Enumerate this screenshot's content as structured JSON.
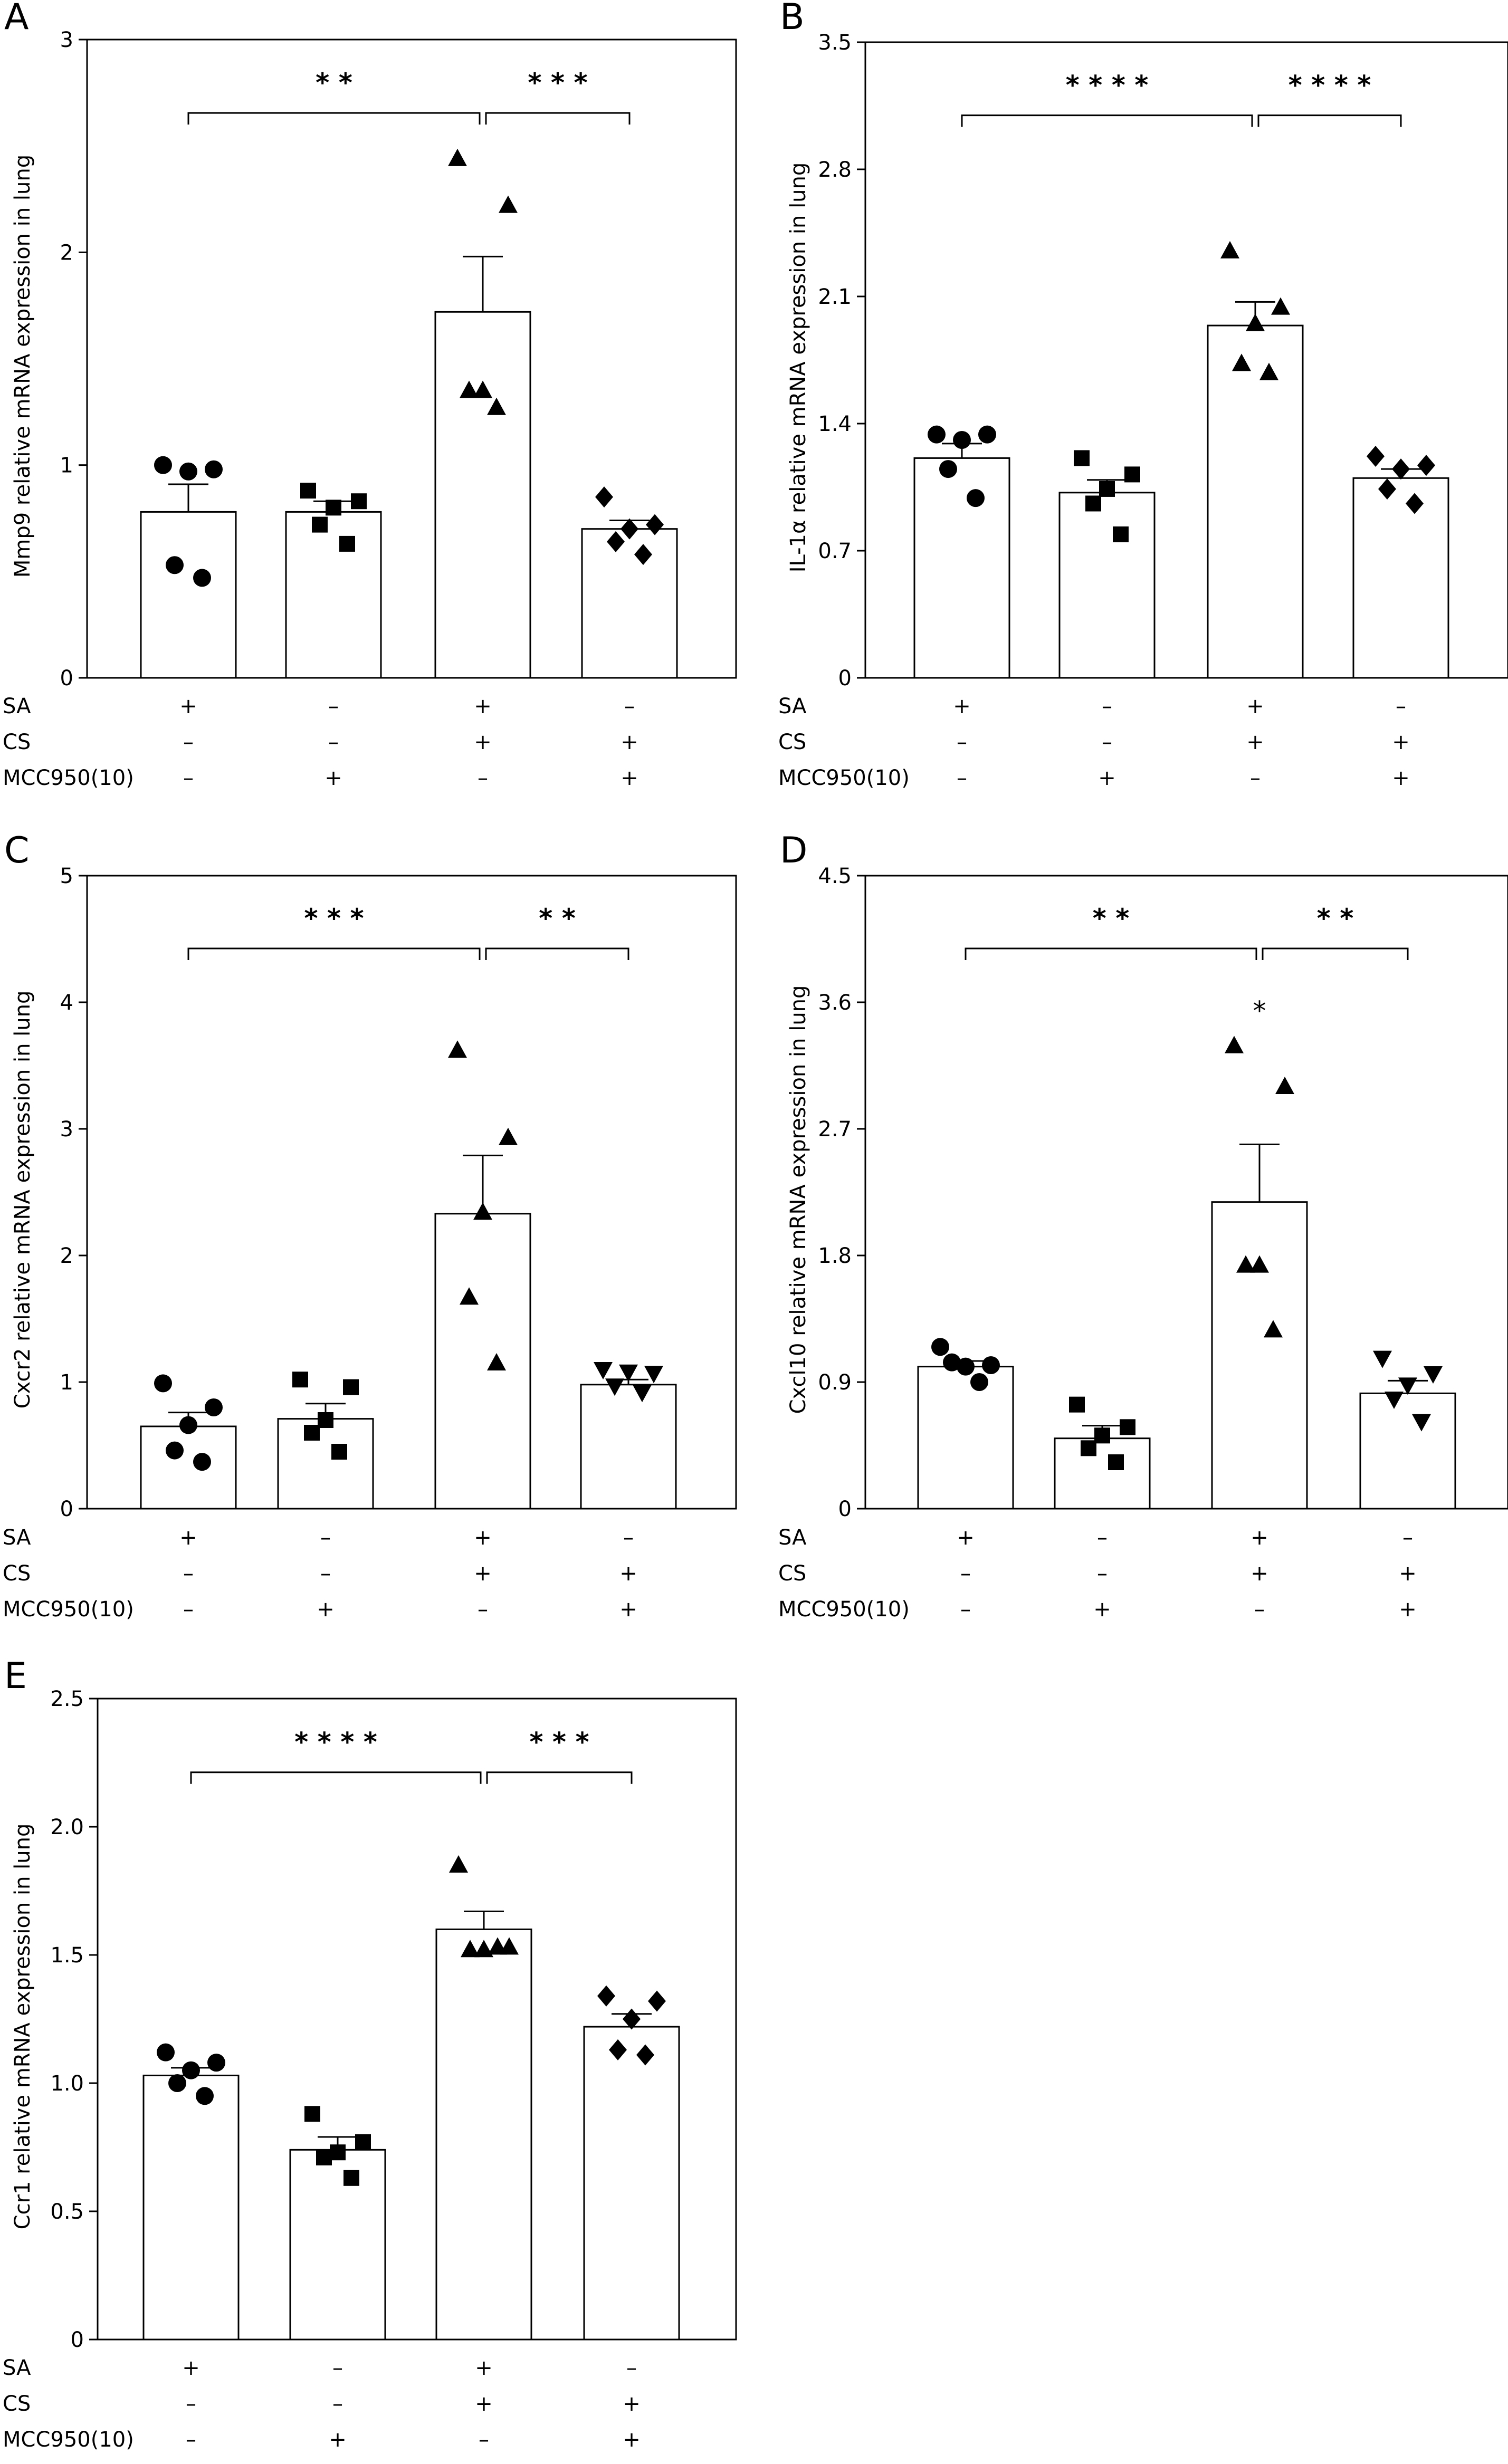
{
  "chart_data": [
    {
      "panel": "A",
      "type": "bar",
      "ylabel": "Mmp9 relative mRNA expression in lung",
      "ylim": [
        0,
        3
      ],
      "yticks": [
        0,
        1,
        2,
        3
      ],
      "tick_labels": [
        "0",
        "1",
        "2",
        "3"
      ],
      "categories": [
        "1",
        "2",
        "3",
        "4"
      ],
      "values": [
        0.78,
        0.78,
        1.72,
        0.7
      ],
      "sem": [
        0.13,
        0.05,
        0.26,
        0.04
      ],
      "points": [
        [
          1.0,
          0.98,
          0.97,
          0.53,
          0.47
        ],
        [
          0.88,
          0.83,
          0.8,
          0.72,
          0.63
        ],
        [
          2.44,
          2.22,
          1.35,
          1.35,
          1.27
        ],
        [
          0.85,
          0.72,
          0.7,
          0.64,
          0.58
        ]
      ],
      "markers": [
        "circle",
        "square",
        "triangle-up",
        "diamond"
      ],
      "significance": [
        {
          "from": 1,
          "to": 3,
          "label": "**"
        },
        {
          "from": 3,
          "to": 4,
          "label": "***"
        }
      ],
      "extra_mark": null,
      "grid": false,
      "legend": "none"
    },
    {
      "panel": "B",
      "type": "bar",
      "ylabel": "IL-1α relative mRNA expression in lung",
      "ylim": [
        0,
        3.5
      ],
      "yticks": [
        0,
        0.7,
        1.4,
        2.1,
        2.8,
        3.5
      ],
      "tick_labels": [
        "0",
        "0.7",
        "1.4",
        "2.1",
        "2.8",
        "3.5"
      ],
      "categories": [
        "1",
        "2",
        "3",
        "4"
      ],
      "values": [
        1.21,
        1.02,
        1.94,
        1.1
      ],
      "sem": [
        0.08,
        0.07,
        0.13,
        0.05
      ],
      "points": [
        [
          1.34,
          1.34,
          1.31,
          1.15,
          0.99
        ],
        [
          1.21,
          1.12,
          1.04,
          0.96,
          0.79
        ],
        [
          2.35,
          2.04,
          1.95,
          1.73,
          1.68
        ],
        [
          1.22,
          1.17,
          1.15,
          1.04,
          0.96
        ]
      ],
      "markers": [
        "circle",
        "square",
        "triangle-up",
        "diamond"
      ],
      "significance": [
        {
          "from": 1,
          "to": 3,
          "label": "****"
        },
        {
          "from": 3,
          "to": 4,
          "label": "****"
        }
      ],
      "extra_mark": null,
      "grid": false,
      "legend": "none"
    },
    {
      "panel": "C",
      "type": "bar",
      "ylabel": "Cxcr2 relative mRNA expression in lung",
      "ylim": [
        0,
        5
      ],
      "yticks": [
        0,
        1,
        2,
        3,
        4,
        5
      ],
      "tick_labels": [
        "0",
        "1",
        "2",
        "3",
        "4",
        "5"
      ],
      "categories": [
        "1",
        "2",
        "3",
        "4"
      ],
      "values": [
        0.65,
        0.71,
        2.33,
        0.98
      ],
      "sem": [
        0.11,
        0.12,
        0.46,
        0.04
      ],
      "points": [
        [
          0.99,
          0.8,
          0.66,
          0.46,
          0.37
        ],
        [
          1.02,
          0.96,
          0.7,
          0.6,
          0.45
        ],
        [
          3.62,
          2.93,
          2.34,
          1.67,
          1.15
        ],
        [
          1.1,
          1.07,
          1.08,
          0.97,
          0.92
        ]
      ],
      "markers": [
        "circle",
        "square",
        "triangle-up",
        "triangle-down"
      ],
      "significance": [
        {
          "from": 1,
          "to": 3,
          "label": "***"
        },
        {
          "from": 3,
          "to": 4,
          "label": "**"
        }
      ],
      "extra_mark": null,
      "grid": false,
      "legend": "none"
    },
    {
      "panel": "D",
      "type": "bar",
      "ylabel": "Cxcl10 relative mRNA expression in lung",
      "ylim": [
        0,
        4.5
      ],
      "yticks": [
        0,
        0.9,
        1.8,
        2.7,
        3.6,
        4.5
      ],
      "tick_labels": [
        "0",
        "0.9",
        "1.8",
        "2.7",
        "3.6",
        "4.5"
      ],
      "categories": [
        "1",
        "2",
        "3",
        "4"
      ],
      "values": [
        1.01,
        0.5,
        2.18,
        0.82
      ],
      "sem": [
        0.04,
        0.09,
        0.41,
        0.09
      ],
      "points": [
        [
          1.15,
          1.02,
          1.01,
          1.04,
          0.9
        ],
        [
          0.74,
          0.58,
          0.52,
          0.43,
          0.33
        ],
        [
          3.29,
          3.0,
          1.73,
          1.73,
          1.27
        ],
        [
          1.07,
          0.96,
          0.88,
          0.78,
          0.62
        ]
      ],
      "markers": [
        "circle",
        "square",
        "triangle-up",
        "triangle-down"
      ],
      "significance": [
        {
          "from": 1,
          "to": 3,
          "label": "**"
        },
        {
          "from": 3,
          "to": 4,
          "label": "**"
        }
      ],
      "extra_mark": {
        "group": 3,
        "y": 3.55,
        "label": "*"
      },
      "grid": false,
      "legend": "none"
    },
    {
      "panel": "E",
      "type": "bar",
      "ylabel": "Ccr1 relative mRNA expression in lung",
      "ylim": [
        0,
        2.5
      ],
      "yticks": [
        0,
        0.5,
        1.0,
        1.5,
        2.0,
        2.5
      ],
      "tick_labels": [
        "0",
        "0.5",
        "1.0",
        "1.5",
        "2.0",
        "2.5"
      ],
      "categories": [
        "1",
        "2",
        "3",
        "4"
      ],
      "values": [
        1.03,
        0.74,
        1.6,
        1.22
      ],
      "sem": [
        0.03,
        0.05,
        0.07,
        0.05
      ],
      "points": [
        [
          1.12,
          1.08,
          1.05,
          1.0,
          0.95
        ],
        [
          0.88,
          0.77,
          0.73,
          0.71,
          0.63
        ],
        [
          1.85,
          1.53,
          1.52,
          1.52,
          1.53
        ],
        [
          1.34,
          1.32,
          1.25,
          1.13,
          1.11
        ]
      ],
      "markers": [
        "circle",
        "square",
        "triangle-up",
        "diamond"
      ],
      "significance": [
        {
          "from": 1,
          "to": 3,
          "label": "****"
        },
        {
          "from": 3,
          "to": 4,
          "label": "***"
        }
      ],
      "extra_mark": null,
      "grid": false,
      "legend": "none"
    }
  ],
  "treatment_table": {
    "rows": [
      {
        "label": "SA",
        "signs": [
          "+",
          "–",
          "+",
          "–"
        ]
      },
      {
        "label": "CS",
        "signs": [
          "–",
          "–",
          "+",
          "+"
        ]
      },
      {
        "label": "MCC950(10)",
        "signs": [
          "–",
          "+",
          "–",
          "+"
        ]
      }
    ]
  }
}
